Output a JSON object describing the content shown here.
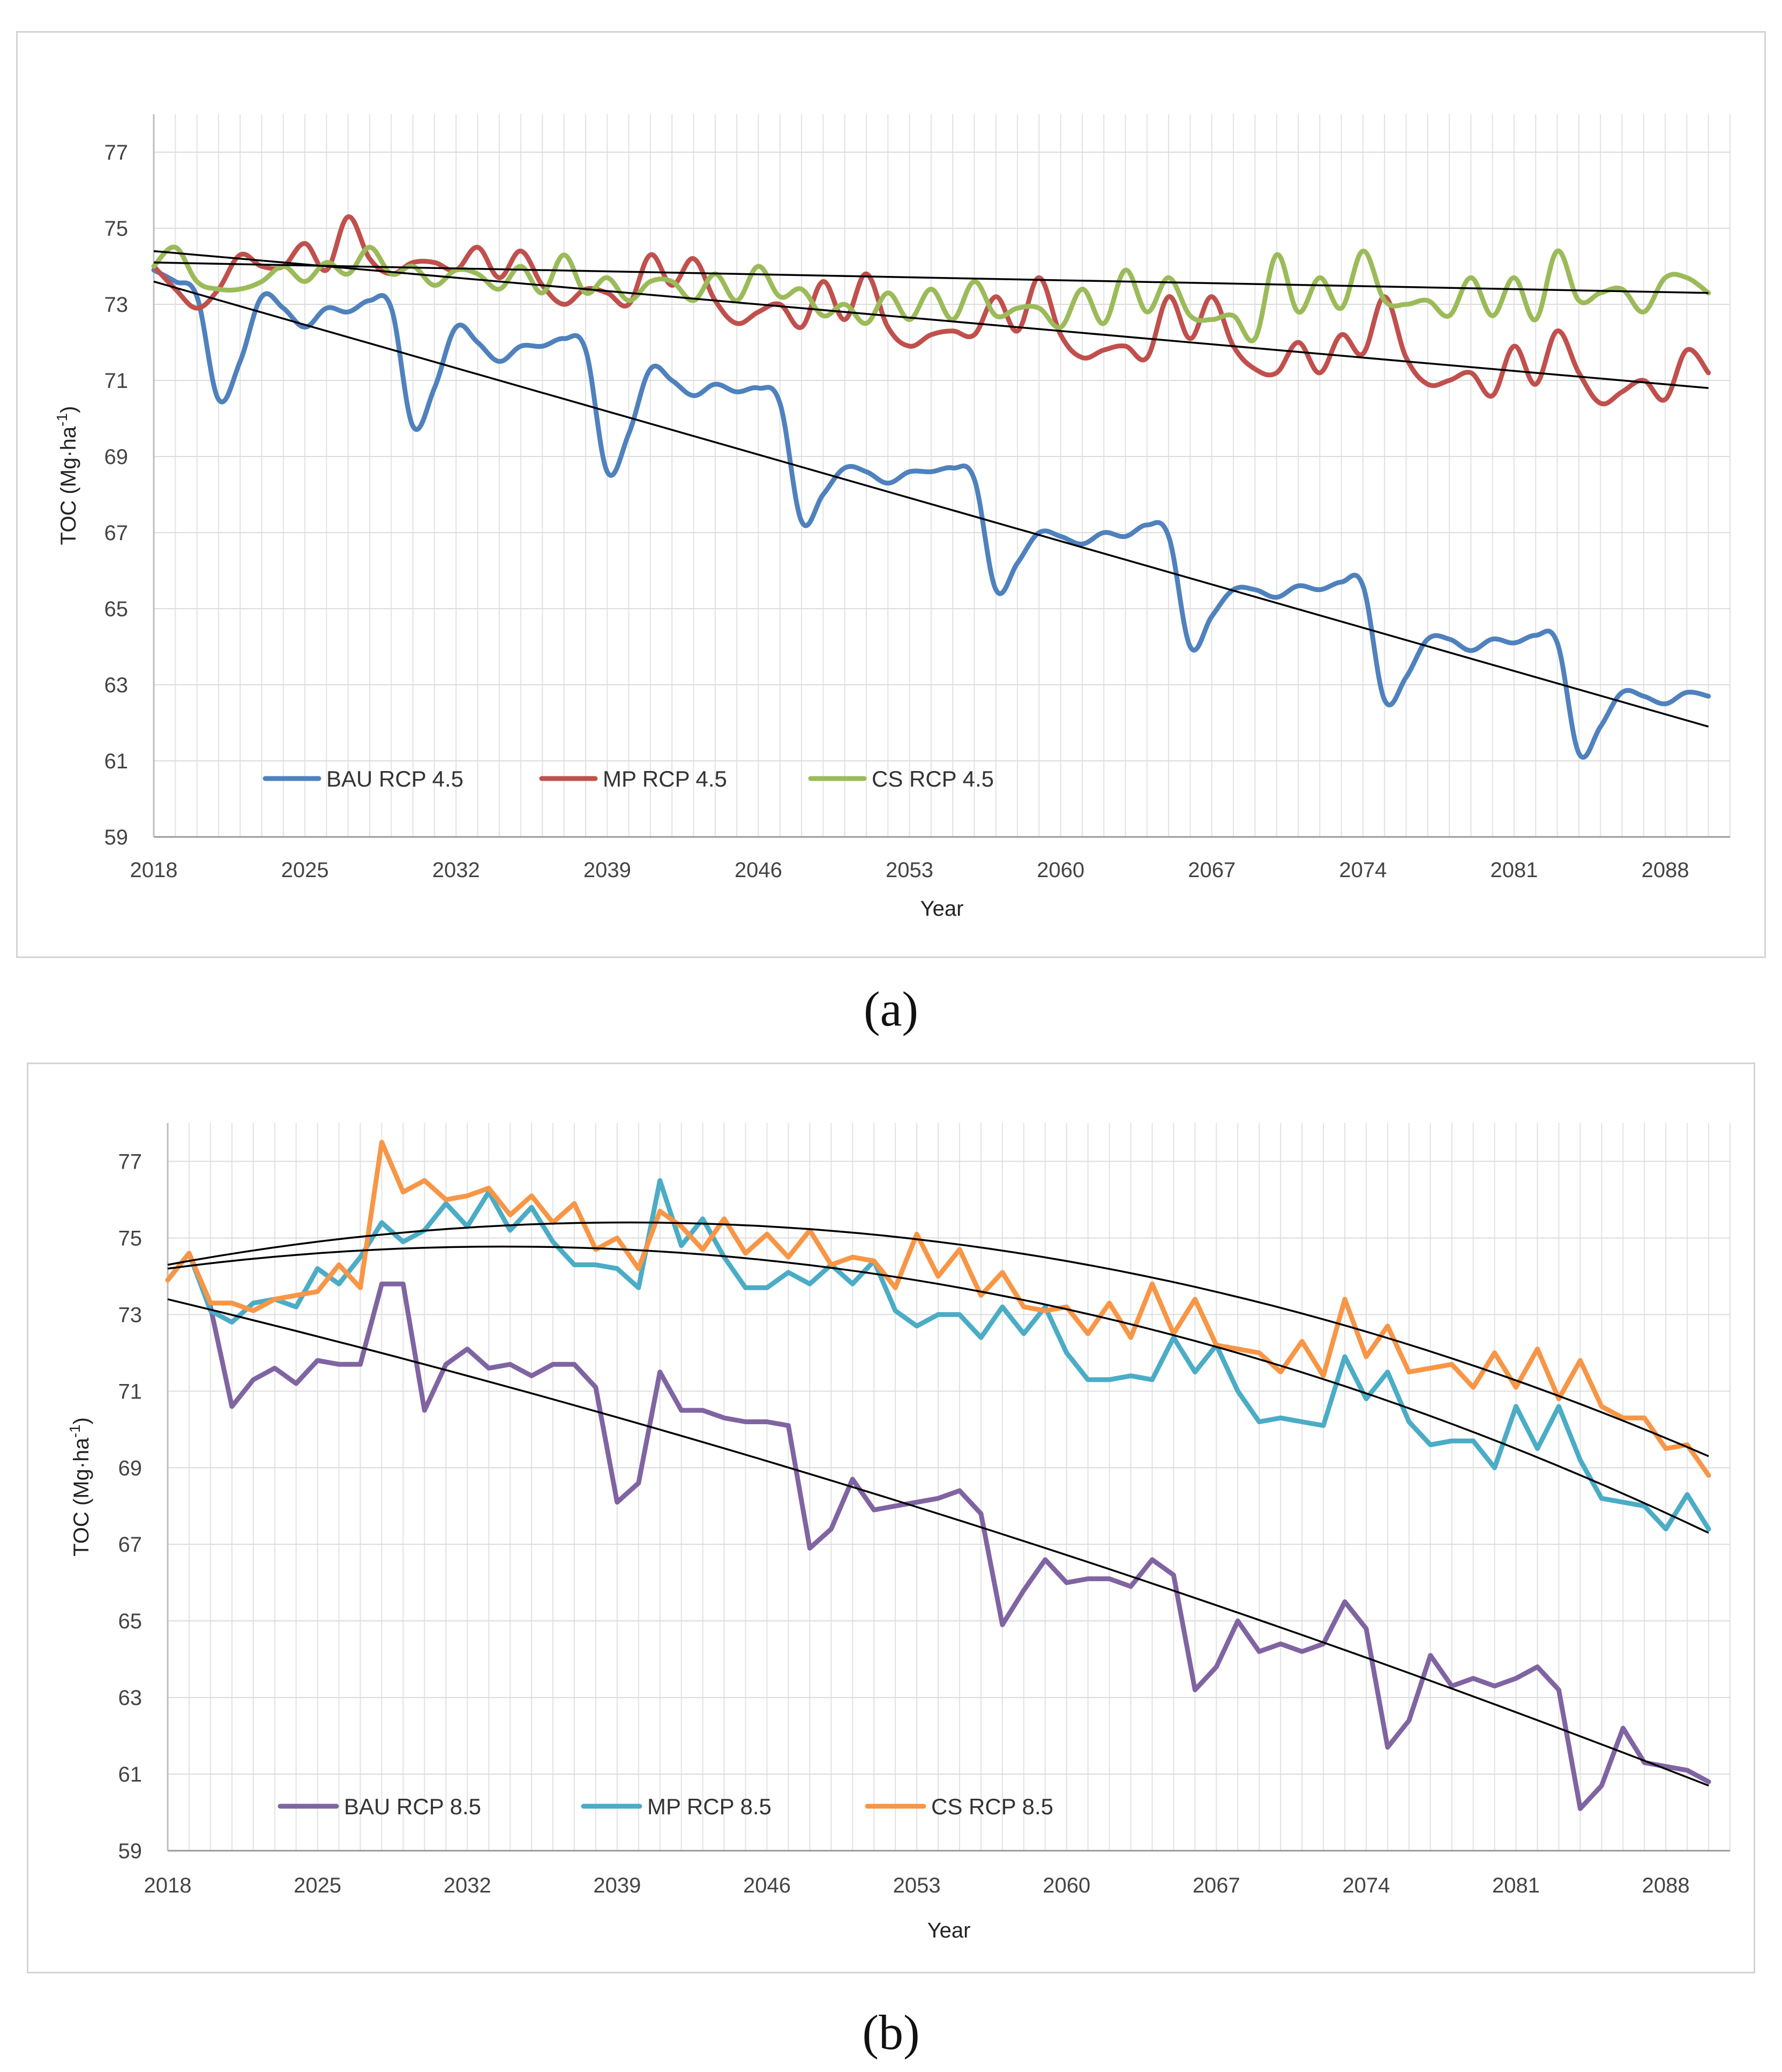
{
  "captions": {
    "a": "(a)",
    "b": "(b)"
  },
  "chart_data": [
    {
      "type": "line",
      "panel": "a",
      "title": "",
      "xlabel": "Year",
      "ylabel": "TOC (Mg·ha⁻¹)",
      "ylabel_main": "TOC (Mg·ha",
      "ylabel_sup": "-1",
      "ylabel_close": ")",
      "x_start": 2018,
      "x_end": 2090,
      "xlim": [
        2018,
        2091
      ],
      "ylim": [
        59,
        78
      ],
      "xticks": [
        2018,
        2025,
        2032,
        2039,
        2046,
        2053,
        2060,
        2067,
        2074,
        2081,
        2088
      ],
      "yticks": [
        59,
        61,
        63,
        65,
        67,
        69,
        71,
        73,
        75,
        77
      ],
      "grid": true,
      "legend_position": "bottom-left",
      "series": [
        {
          "name": "BAU RCP 4.5",
          "color": "#4f81bd",
          "values": [
            73.9,
            73.6,
            73.2,
            70.5,
            71.5,
            73.2,
            72.9,
            72.4,
            72.9,
            72.8,
            73.1,
            72.9,
            69.8,
            70.8,
            72.4,
            72.0,
            71.5,
            71.9,
            71.9,
            72.1,
            71.8,
            68.6,
            69.6,
            71.3,
            71.0,
            70.6,
            70.9,
            70.7,
            70.8,
            70.4,
            67.3,
            68.0,
            68.7,
            68.6,
            68.3,
            68.6,
            68.6,
            68.7,
            68.4,
            65.5,
            66.2,
            67.0,
            66.9,
            66.7,
            67.0,
            66.9,
            67.2,
            66.9,
            64.0,
            64.8,
            65.5,
            65.5,
            65.3,
            65.6,
            65.5,
            65.7,
            65.6,
            62.6,
            63.2,
            64.2,
            64.2,
            63.9,
            64.2,
            64.1,
            64.3,
            64.1,
            61.2,
            61.9,
            62.8,
            62.7,
            62.5,
            62.8,
            62.7
          ],
          "trend": [
            73.6,
            61.9
          ]
        },
        {
          "name": "MP RCP 4.5",
          "color": "#c0504d",
          "values": [
            74.0,
            73.4,
            72.9,
            73.4,
            74.3,
            74.0,
            74.0,
            74.6,
            73.9,
            75.3,
            74.2,
            73.8,
            74.1,
            74.1,
            73.9,
            74.5,
            73.7,
            74.4,
            73.5,
            73.0,
            73.4,
            73.3,
            73.0,
            74.3,
            73.5,
            74.2,
            73.1,
            72.5,
            72.8,
            73.0,
            72.4,
            73.6,
            72.6,
            73.8,
            72.4,
            71.9,
            72.2,
            72.3,
            72.2,
            73.2,
            72.3,
            73.7,
            72.2,
            71.6,
            71.8,
            71.9,
            71.6,
            73.2,
            72.1,
            73.2,
            71.9,
            71.3,
            71.2,
            72.0,
            71.2,
            72.2,
            71.7,
            73.2,
            71.6,
            70.9,
            71.0,
            71.2,
            70.6,
            71.9,
            70.9,
            72.3,
            71.2,
            70.4,
            70.7,
            71.0,
            70.5,
            71.8,
            71.2
          ],
          "trend": [
            74.4,
            70.8
          ]
        },
        {
          "name": "CS RCP 4.5",
          "color": "#9bbb59",
          "values": [
            74.0,
            74.5,
            73.6,
            73.4,
            73.4,
            73.6,
            74.0,
            73.6,
            74.1,
            73.8,
            74.5,
            73.8,
            74.0,
            73.5,
            73.9,
            73.8,
            73.4,
            74.0,
            73.3,
            74.3,
            73.3,
            73.7,
            73.1,
            73.6,
            73.6,
            73.1,
            73.8,
            73.1,
            74.0,
            73.2,
            73.4,
            72.7,
            73.0,
            72.5,
            73.3,
            72.6,
            73.4,
            72.6,
            73.6,
            72.7,
            72.9,
            72.9,
            72.4,
            73.4,
            72.5,
            73.9,
            72.8,
            73.7,
            72.7,
            72.6,
            72.7,
            72.1,
            74.3,
            72.8,
            73.7,
            72.9,
            74.4,
            73.1,
            73.0,
            73.1,
            72.7,
            73.7,
            72.7,
            73.7,
            72.6,
            74.4,
            73.1,
            73.3,
            73.4,
            72.8,
            73.7,
            73.7,
            73.3
          ],
          "trend": [
            74.1,
            73.3
          ]
        }
      ]
    },
    {
      "type": "line",
      "panel": "b",
      "title": "",
      "xlabel": "Year",
      "ylabel": "TOC (Mg·ha⁻¹)",
      "ylabel_main": "TOC (Mg·ha",
      "ylabel_sup": "-1",
      "ylabel_close": ")",
      "x_start": 2018,
      "x_end": 2090,
      "xlim": [
        2018,
        2091
      ],
      "ylim": [
        59,
        78
      ],
      "xticks": [
        2018,
        2025,
        2032,
        2039,
        2046,
        2053,
        2060,
        2067,
        2074,
        2081,
        2088
      ],
      "yticks": [
        59,
        61,
        63,
        65,
        67,
        69,
        71,
        73,
        75,
        77
      ],
      "grid": true,
      "legend_position": "bottom-left",
      "series": [
        {
          "name": "BAU RCP 8.5",
          "color": "#8064a2",
          "values": [
            73.9,
            74.6,
            73.2,
            70.6,
            71.3,
            71.6,
            71.2,
            71.8,
            71.7,
            71.7,
            73.8,
            73.8,
            70.5,
            71.7,
            72.1,
            71.6,
            71.7,
            71.4,
            71.7,
            71.7,
            71.1,
            68.1,
            68.6,
            71.5,
            70.5,
            70.5,
            70.3,
            70.2,
            70.2,
            70.1,
            66.9,
            67.4,
            68.7,
            67.9,
            68.0,
            68.1,
            68.2,
            68.4,
            67.8,
            64.9,
            65.8,
            66.6,
            66.0,
            66.1,
            66.1,
            65.9,
            66.6,
            66.2,
            63.2,
            63.8,
            65.0,
            64.2,
            64.4,
            64.2,
            64.4,
            65.5,
            64.8,
            61.7,
            62.4,
            64.1,
            63.3,
            63.5,
            63.3,
            63.5,
            63.8,
            63.2,
            60.1,
            60.7,
            62.2,
            61.3,
            61.2,
            61.1,
            60.8
          ],
          "trend_quad": [
            73.4,
            67.8,
            60.7
          ]
        },
        {
          "name": "MP RCP 8.5",
          "color": "#4bacc6",
          "values": [
            73.9,
            74.6,
            73.1,
            72.8,
            73.3,
            73.4,
            73.2,
            74.2,
            73.8,
            74.5,
            75.4,
            74.9,
            75.2,
            75.9,
            75.3,
            76.2,
            75.2,
            75.8,
            74.9,
            74.3,
            74.3,
            74.2,
            73.7,
            76.5,
            74.8,
            75.5,
            74.5,
            73.7,
            73.7,
            74.1,
            73.8,
            74.3,
            73.8,
            74.4,
            73.1,
            72.7,
            73.0,
            73.0,
            72.4,
            73.2,
            72.5,
            73.2,
            72.0,
            71.3,
            71.3,
            71.4,
            71.3,
            72.4,
            71.5,
            72.2,
            71.0,
            70.2,
            70.3,
            70.2,
            70.1,
            71.9,
            70.8,
            71.5,
            70.2,
            69.6,
            69.7,
            69.7,
            69.0,
            70.6,
            69.5,
            70.6,
            69.2,
            68.2,
            68.1,
            68.0,
            67.4,
            68.3,
            67.4
          ],
          "trend_quad": [
            74.2,
            73.8,
            67.3
          ]
        },
        {
          "name": "CS RCP 8.5",
          "color": "#f79646",
          "values": [
            73.9,
            74.6,
            73.3,
            73.3,
            73.1,
            73.4,
            73.5,
            73.6,
            74.3,
            73.7,
            77.5,
            76.2,
            76.5,
            76.0,
            76.1,
            76.3,
            75.6,
            76.1,
            75.4,
            75.9,
            74.7,
            75.0,
            74.2,
            75.7,
            75.3,
            74.7,
            75.5,
            74.6,
            75.1,
            74.5,
            75.2,
            74.3,
            74.5,
            74.4,
            73.7,
            75.1,
            74.0,
            74.7,
            73.5,
            74.1,
            73.2,
            73.1,
            73.2,
            72.5,
            73.3,
            72.4,
            73.8,
            72.5,
            73.4,
            72.2,
            72.1,
            72.0,
            71.5,
            72.3,
            71.4,
            73.4,
            71.9,
            72.7,
            71.5,
            71.6,
            71.7,
            71.1,
            72.0,
            71.1,
            72.1,
            70.8,
            71.8,
            70.6,
            70.3,
            70.3,
            69.5,
            69.6,
            68.8
          ],
          "trend_quad": [
            74.3,
            74.9,
            69.3
          ]
        }
      ]
    }
  ]
}
